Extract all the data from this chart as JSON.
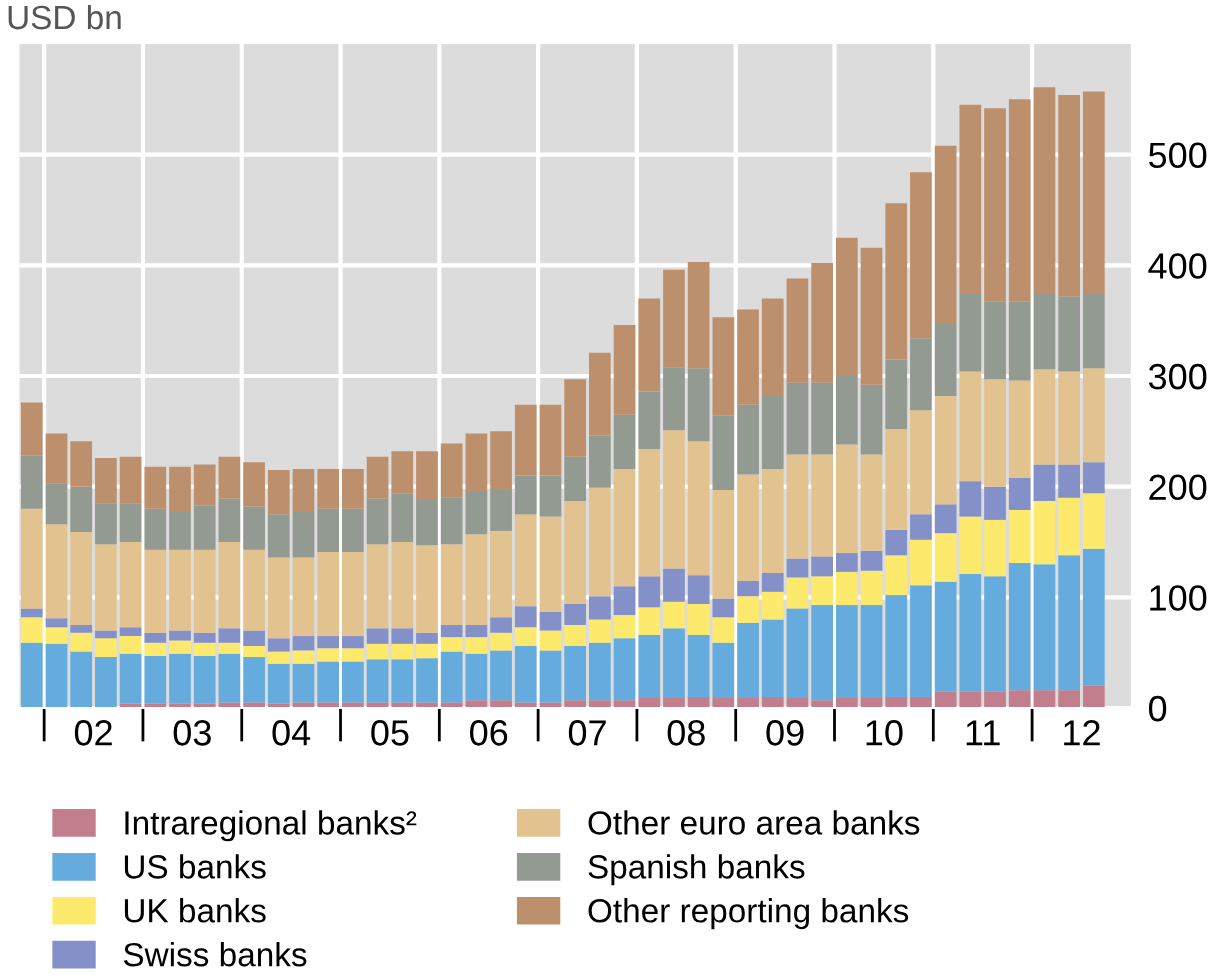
{
  "chart_data": {
    "type": "bar",
    "stacked": true,
    "ylabel": "USD bn",
    "categories": [
      null,
      null,
      null,
      "02",
      null,
      null,
      null,
      "03",
      null,
      null,
      null,
      "04",
      null,
      null,
      null,
      "05",
      null,
      null,
      null,
      "06",
      null,
      null,
      null,
      "07",
      null,
      null,
      null,
      "08",
      null,
      null,
      null,
      "09",
      null,
      null,
      null,
      "10",
      null,
      null,
      null,
      "11",
      null,
      null,
      null,
      "12"
    ],
    "series": [
      {
        "name": "Intraregional banks²",
        "color": "#c27e8c",
        "values": [
          0,
          0,
          0,
          0,
          4,
          4,
          4,
          4,
          5,
          5,
          4,
          5,
          5,
          5,
          5,
          5,
          5,
          5,
          7,
          7,
          5,
          5,
          7,
          7,
          7,
          9,
          9,
          10,
          9,
          9,
          10,
          9,
          7,
          9,
          9,
          10,
          10,
          15,
          15,
          15,
          16,
          16,
          16,
          20
        ]
      },
      {
        "name": "US banks",
        "color": "#66abdd",
        "values": [
          59,
          58,
          51,
          46,
          45,
          43,
          45,
          43,
          44,
          41,
          36,
          35,
          37,
          37,
          39,
          39,
          40,
          46,
          42,
          45,
          51,
          47,
          49,
          52,
          56,
          57,
          63,
          56,
          50,
          68,
          70,
          81,
          86,
          84,
          84,
          92,
          101,
          99,
          106,
          104,
          115,
          114,
          122,
          124
        ]
      },
      {
        "name": "UK banks",
        "color": "#fde96b",
        "values": [
          23,
          15,
          17,
          17,
          16,
          12,
          12,
          12,
          10,
          10,
          11,
          12,
          12,
          12,
          14,
          14,
          13,
          13,
          15,
          16,
          17,
          18,
          19,
          21,
          21,
          25,
          24,
          28,
          23,
          24,
          25,
          28,
          26,
          30,
          31,
          36,
          41,
          44,
          52,
          51,
          48,
          57,
          52,
          50
        ]
      },
      {
        "name": "Swiss banks",
        "color": "#8490c8",
        "values": [
          8,
          8,
          7,
          7,
          8,
          9,
          9,
          9,
          13,
          14,
          12,
          13,
          11,
          11,
          14,
          14,
          10,
          11,
          11,
          14,
          19,
          17,
          19,
          21,
          26,
          28,
          30,
          26,
          17,
          14,
          17,
          17,
          18,
          17,
          18,
          23,
          23,
          26,
          32,
          30,
          29,
          33,
          30,
          28
        ]
      },
      {
        "name": "Other euro area banks",
        "color": "#e2c28f",
        "values": [
          90,
          85,
          84,
          78,
          77,
          75,
          73,
          75,
          78,
          73,
          73,
          71,
          76,
          76,
          76,
          78,
          79,
          73,
          82,
          78,
          83,
          86,
          93,
          98,
          106,
          115,
          125,
          121,
          98,
          96,
          94,
          94,
          92,
          98,
          87,
          91,
          94,
          98,
          99,
          97,
          88,
          86,
          84,
          85
        ]
      },
      {
        "name": "Spanish banks",
        "color": "#939a92",
        "values": [
          48,
          37,
          41,
          37,
          35,
          37,
          35,
          40,
          39,
          39,
          39,
          42,
          39,
          39,
          41,
          44,
          41,
          42,
          39,
          37,
          35,
          37,
          40,
          47,
          49,
          52,
          57,
          66,
          67,
          63,
          66,
          65,
          65,
          63,
          63,
          63,
          65,
          66,
          70,
          70,
          71,
          68,
          68,
          67
        ]
      },
      {
        "name": "Other reporting banks",
        "color": "#bd906d",
        "values": [
          48,
          45,
          41,
          41,
          42,
          38,
          40,
          37,
          38,
          40,
          40,
          38,
          36,
          36,
          38,
          38,
          44,
          49,
          52,
          53,
          64,
          64,
          70,
          75,
          81,
          84,
          88,
          96,
          89,
          86,
          88,
          94,
          108,
          124,
          124,
          141,
          150,
          160,
          171,
          175,
          183,
          187,
          182,
          183
        ]
      }
    ],
    "ylim": [
      0,
      600
    ],
    "yticks": [
      0,
      100,
      200,
      300,
      400,
      500
    ],
    "grid": true,
    "legend": "bottom"
  }
}
